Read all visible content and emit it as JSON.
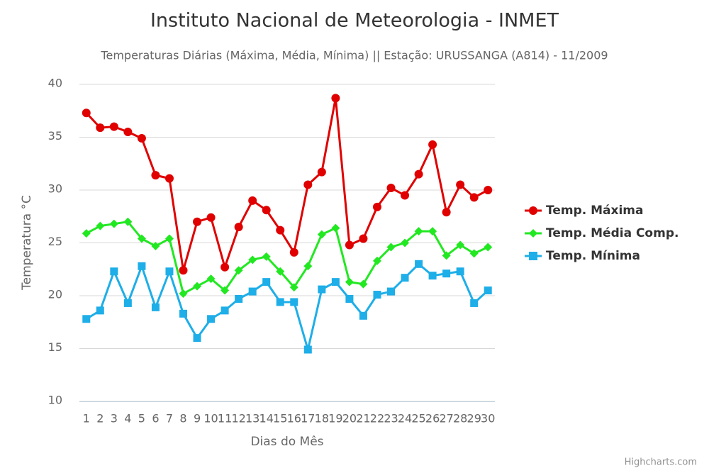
{
  "chart_data": {
    "type": "line",
    "title": "Instituto Nacional de Meteorologia - INMET",
    "subtitle": "Temperaturas Diárias (Máxima, Média, Mínima) || Estação: URUSSANGA (A814) - 11/2009",
    "x_label": "Dias do Mês",
    "y_label": "Temperatura °C",
    "credit": "Highcharts.com",
    "categories": [
      "1",
      "2",
      "3",
      "4",
      "5",
      "6",
      "7",
      "8",
      "9",
      "10",
      "11",
      "12",
      "13",
      "14",
      "15",
      "16",
      "17",
      "18",
      "19",
      "20",
      "21",
      "22",
      "23",
      "24",
      "25",
      "26",
      "27",
      "28",
      "29",
      "30"
    ],
    "ylim": [
      10,
      40
    ],
    "yticks": [
      10,
      15,
      20,
      25,
      30,
      35,
      40
    ],
    "grid": true,
    "legend": "right",
    "series": [
      {
        "name": "Temp. Máxima",
        "color": "#e00000",
        "marker": "circle",
        "values": [
          37.3,
          35.9,
          36.0,
          35.5,
          34.9,
          31.4,
          31.1,
          22.4,
          27.0,
          27.4,
          22.7,
          26.5,
          29.0,
          28.1,
          26.2,
          24.1,
          30.5,
          31.7,
          38.7,
          24.8,
          25.4,
          28.4,
          30.2,
          29.5,
          31.5,
          34.3,
          27.9,
          30.5,
          29.3,
          30.0
        ]
      },
      {
        "name": "Temp. Média Comp.",
        "color": "#22e822",
        "marker": "diamond",
        "values": [
          25.9,
          26.6,
          26.8,
          27.0,
          25.4,
          24.7,
          25.4,
          20.2,
          20.9,
          21.6,
          20.5,
          22.4,
          23.4,
          23.7,
          22.3,
          20.8,
          22.8,
          25.8,
          26.4,
          21.3,
          21.1,
          23.3,
          24.6,
          25.0,
          26.1,
          26.1,
          23.8,
          24.8,
          24.0,
          24.6
        ]
      },
      {
        "name": "Temp. Mínima",
        "color": "#1eaee8",
        "marker": "square",
        "values": [
          17.8,
          18.6,
          22.3,
          19.3,
          22.8,
          18.9,
          22.3,
          18.3,
          16.0,
          17.8,
          18.6,
          19.7,
          20.4,
          21.3,
          19.4,
          19.4,
          14.9,
          20.6,
          21.3,
          19.7,
          18.1,
          20.1,
          20.4,
          21.7,
          23.0,
          21.9,
          22.1,
          22.3,
          19.3,
          20.5
        ]
      }
    ]
  }
}
